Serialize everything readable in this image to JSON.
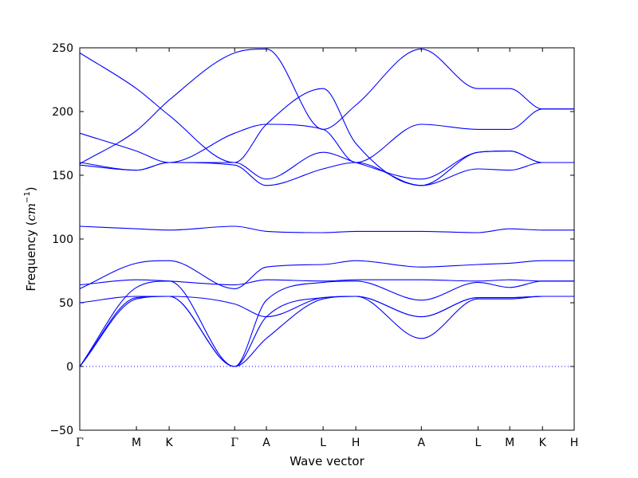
{
  "chart_data": {
    "type": "line",
    "xlabel": "Wave vector",
    "ylabel_prefix": "Frequency (",
    "ylabel_unit": "cm",
    "ylabel_exp": "−1",
    "ylabel_suffix": ")",
    "ylim": [
      -50,
      250
    ],
    "yticks": [
      -50,
      0,
      50,
      100,
      150,
      200,
      250
    ],
    "grid": false,
    "zero_line": true,
    "line_color": "#0000ff",
    "zero_line_color": "#0000ff",
    "xticks": [
      {
        "label": "Γ",
        "pos": 0.0
      },
      {
        "label": "M",
        "pos": 0.577
      },
      {
        "label": "K",
        "pos": 0.91
      },
      {
        "label": "Γ",
        "pos": 1.577
      },
      {
        "label": "A",
        "pos": 1.9
      },
      {
        "label": "L",
        "pos": 2.477
      },
      {
        "label": "H",
        "pos": 2.81
      },
      {
        "label": "A",
        "pos": 3.477
      },
      {
        "label": "L",
        "pos": 4.054
      },
      {
        "label": "M",
        "pos": 4.377
      },
      {
        "label": "K",
        "pos": 4.71
      },
      {
        "label": "H",
        "pos": 5.033
      }
    ],
    "xlim": [
      0,
      5.033
    ],
    "series": [
      {
        "x": [
          0,
          0.577,
          0.91,
          1.577,
          1.9,
          2.477,
          2.81,
          3.477,
          4.054,
          4.377,
          4.71,
          5.033
        ],
        "y": [
          0,
          53,
          55,
          0,
          22,
          53,
          55,
          22,
          53,
          53,
          55,
          55
        ]
      },
      {
        "x": [
          0,
          0.577,
          0.91,
          1.577,
          1.9,
          2.477,
          2.81,
          3.477,
          4.054,
          4.377,
          4.71,
          5.033
        ],
        "y": [
          0,
          54,
          55,
          0,
          39,
          54,
          55,
          39,
          54,
          54,
          55,
          55
        ]
      },
      {
        "x": [
          0,
          0.577,
          0.91,
          1.577,
          1.9,
          2.477,
          2.81,
          3.477,
          4.054,
          4.377,
          4.71,
          5.033
        ],
        "y": [
          0,
          62,
          67,
          0,
          52,
          66,
          67,
          52,
          66,
          62,
          67,
          67
        ]
      },
      {
        "x": [
          0,
          0.577,
          0.91,
          1.577,
          1.9,
          2.477,
          2.81,
          3.477,
          4.054,
          4.377,
          4.71,
          5.033
        ],
        "y": [
          50,
          55,
          55,
          49,
          39,
          54,
          55,
          39,
          54,
          54,
          55,
          55
        ]
      },
      {
        "x": [
          0,
          0.577,
          0.91,
          1.577,
          1.9,
          2.477,
          2.81,
          3.477,
          4.054,
          4.377,
          4.71,
          5.033
        ],
        "y": [
          61,
          81,
          83,
          61,
          78,
          80,
          83,
          78,
          80,
          81,
          83,
          83
        ]
      },
      {
        "x": [
          0,
          0.577,
          0.91,
          1.577,
          1.9,
          2.477,
          2.81,
          3.477,
          4.054,
          4.377,
          4.71,
          5.033
        ],
        "y": [
          64,
          68,
          67,
          64,
          68,
          67,
          68,
          68,
          67,
          68,
          67,
          67
        ]
      },
      {
        "x": [
          0,
          0.577,
          0.91,
          1.577,
          1.9,
          2.477,
          2.81,
          3.477,
          4.054,
          4.377,
          4.71,
          5.033
        ],
        "y": [
          110,
          108,
          107,
          110,
          106,
          105,
          106,
          106,
          105,
          108,
          107,
          107
        ]
      },
      {
        "x": [
          0,
          0.577,
          0.91,
          1.577,
          1.9,
          2.477,
          2.81,
          3.477,
          4.054,
          4.377,
          4.71,
          5.033
        ],
        "y": [
          158,
          154,
          160,
          158,
          142,
          155,
          160,
          142,
          155,
          154,
          160,
          160
        ]
      },
      {
        "x": [
          0,
          0.577,
          0.91,
          1.577,
          1.9,
          2.477,
          2.81,
          3.477,
          4.054,
          4.377,
          4.71,
          5.033
        ],
        "y": [
          160,
          154,
          160,
          160,
          147,
          168,
          160,
          147,
          168,
          169,
          160,
          160
        ]
      },
      {
        "x": [
          0,
          0.577,
          0.91,
          1.577,
          1.9,
          2.477,
          2.81,
          3.477,
          4.054,
          4.377,
          4.71,
          5.033
        ],
        "y": [
          183,
          169,
          160,
          183,
          190,
          186,
          160,
          190,
          186,
          186,
          202,
          202
        ]
      },
      {
        "x": [
          0,
          0.577,
          0.91,
          1.577,
          1.9,
          2.477,
          2.81,
          3.477,
          4.054,
          4.377,
          4.71,
          5.033
        ],
        "y": [
          159,
          185,
          209,
          246,
          249,
          186,
          205,
          249,
          218,
          218,
          202,
          202
        ]
      },
      {
        "x": [
          0,
          0.577,
          0.91,
          1.577,
          1.9,
          2.477,
          2.81,
          3.477,
          4.054,
          4.377,
          4.71,
          5.033
        ],
        "y": [
          246,
          218,
          197,
          160,
          190,
          218,
          175,
          142,
          168,
          169,
          160,
          160
        ]
      }
    ]
  }
}
